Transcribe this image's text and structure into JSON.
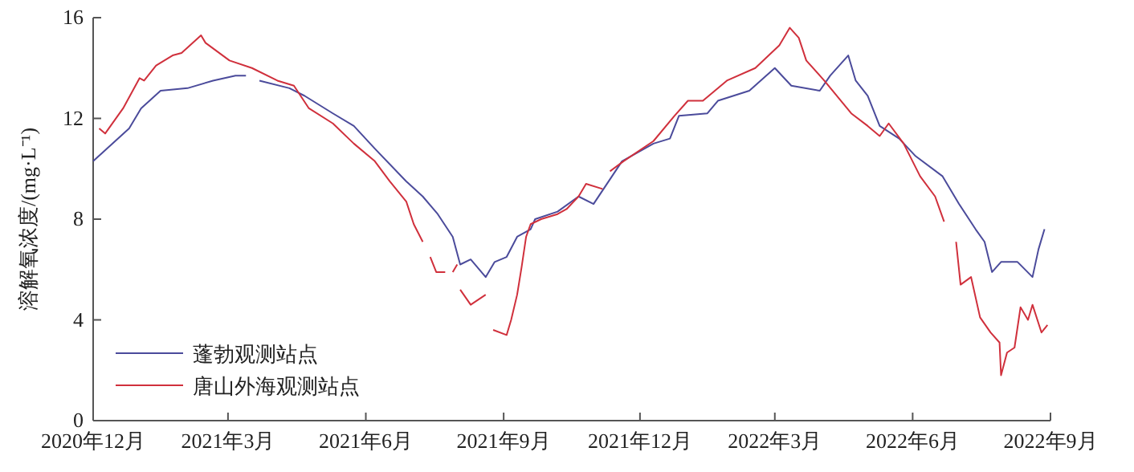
{
  "chart_data": {
    "type": "line",
    "ylabel": "溶解氧浓度/(mg·L⁻¹)",
    "xlim": [
      "2020-12-01",
      "2022-09-01"
    ],
    "xticks": [
      {
        "value": "2020-12-01",
        "label": "2020年12月"
      },
      {
        "value": "2021-03-01",
        "label": "2021年3月"
      },
      {
        "value": "2021-06-01",
        "label": "2021年6月"
      },
      {
        "value": "2021-09-01",
        "label": "2021年9月"
      },
      {
        "value": "2021-12-01",
        "label": "2021年12月"
      },
      {
        "value": "2022-03-01",
        "label": "2022年3月"
      },
      {
        "value": "2022-06-01",
        "label": "2022年6月"
      },
      {
        "value": "2022-09-01",
        "label": "2022年9月"
      }
    ],
    "ylim": [
      0,
      16
    ],
    "yticks": [
      0,
      4,
      8,
      12,
      16
    ],
    "legend": "bottom left",
    "grid": false,
    "series": [
      {
        "name": "蓬勃观测站点",
        "color": "#4b4b9b",
        "x": [
          "2020-12-01",
          "2020-12-25",
          "2021-01-02",
          "2021-01-15",
          "2021-02-02",
          "2021-02-19",
          "2021-03-06",
          "2021-03-13",
          "2021-03-17",
          "2021-03-22",
          "2021-04-11",
          "2021-04-21",
          "2021-05-10",
          "2021-05-24",
          "2021-06-07",
          "2021-06-28",
          "2021-07-09",
          "2021-07-19",
          "2021-07-29",
          "2021-08-03",
          "2021-08-10",
          "2021-08-20",
          "2021-08-26",
          "2021-09-03",
          "2021-09-10",
          "2021-09-19",
          "2021-09-22",
          "2021-10-07",
          "2021-10-21",
          "2021-10-31",
          "2021-11-19",
          "2021-12-10",
          "2021-12-21",
          "2021-12-27",
          "2022-01-15",
          "2022-01-22",
          "2022-02-12",
          "2022-03-01",
          "2022-03-12",
          "2022-03-31",
          "2022-04-07",
          "2022-04-19",
          "2022-04-24",
          "2022-05-02",
          "2022-05-10",
          "2022-05-23",
          "2022-06-03",
          "2022-06-21",
          "2022-07-02",
          "2022-07-13",
          "2022-07-19",
          "2022-07-24",
          "2022-07-30",
          "2022-08-10",
          "2022-08-20",
          "2022-08-24",
          "2022-08-28"
        ],
        "values": [
          10.3,
          11.6,
          12.4,
          13.1,
          13.2,
          13.5,
          13.7,
          13.7,
          null,
          13.5,
          13.2,
          12.9,
          12.2,
          11.7,
          10.8,
          9.5,
          8.9,
          8.2,
          7.3,
          6.2,
          6.4,
          5.7,
          6.3,
          6.5,
          7.3,
          7.6,
          8.0,
          8.3,
          8.9,
          8.6,
          10.3,
          11.0,
          11.2,
          12.1,
          12.2,
          12.7,
          13.1,
          14.0,
          13.3,
          13.1,
          13.7,
          14.5,
          13.5,
          12.9,
          11.7,
          11.2,
          10.5,
          9.7,
          8.6,
          7.6,
          7.1,
          5.9,
          6.3,
          6.3,
          5.7,
          6.8,
          7.6
        ]
      },
      {
        "name": "唐山外海观测站点",
        "color": "#d0303c",
        "x": [
          "2020-12-05",
          "2020-12-09",
          "2020-12-21",
          "2021-01-01",
          "2021-01-04",
          "2021-01-12",
          "2021-01-23",
          "2021-01-29",
          "2021-02-11",
          "2021-02-14",
          "2021-03-02",
          "2021-03-17",
          "2021-04-03",
          "2021-04-14",
          "2021-04-24",
          "2021-05-10",
          "2021-05-24",
          "2021-06-07",
          "2021-06-17",
          "2021-06-28",
          "2021-07-03",
          "2021-07-09",
          "2021-07-11",
          "2021-07-14",
          "2021-07-18",
          "2021-07-24",
          "2021-07-26",
          "2021-07-29",
          "2021-08-01",
          "2021-08-02",
          "2021-08-03",
          "2021-08-10",
          "2021-08-20",
          "2021-08-23",
          "2021-08-25",
          "2021-09-03",
          "2021-09-06",
          "2021-09-10",
          "2021-09-13",
          "2021-09-16",
          "2021-09-19",
          "2021-09-26",
          "2021-10-07",
          "2021-10-13",
          "2021-10-21",
          "2021-10-26",
          "2021-11-06",
          "2021-11-08",
          "2021-11-11",
          "2021-11-20",
          "2021-12-10",
          "2021-12-24",
          "2022-01-02",
          "2022-01-12",
          "2022-01-28",
          "2022-02-16",
          "2022-03-04",
          "2022-03-11",
          "2022-03-17",
          "2022-03-22",
          "2022-04-03",
          "2022-04-21",
          "2022-05-02",
          "2022-05-10",
          "2022-05-16",
          "2022-05-26",
          "2022-06-06",
          "2022-06-16",
          "2022-06-22",
          "2022-06-26",
          "2022-06-30",
          "2022-07-03",
          "2022-07-10",
          "2022-07-16",
          "2022-07-23",
          "2022-07-29",
          "2022-07-30",
          "2022-08-03",
          "2022-08-08",
          "2022-08-12",
          "2022-08-17",
          "2022-08-20",
          "2022-08-26",
          "2022-08-30"
        ],
        "values": [
          11.6,
          11.4,
          12.4,
          13.6,
          13.5,
          14.1,
          14.5,
          14.6,
          15.3,
          15.0,
          14.3,
          14.0,
          13.5,
          13.3,
          12.4,
          11.8,
          11.0,
          10.3,
          9.5,
          8.7,
          7.8,
          7.1,
          null,
          6.5,
          5.9,
          5.9,
          null,
          5.9,
          6.2,
          null,
          5.2,
          4.6,
          5.0,
          null,
          3.6,
          3.4,
          4.0,
          5.0,
          6.1,
          7.3,
          7.8,
          8.0,
          8.2,
          8.4,
          8.9,
          9.4,
          9.2,
          null,
          9.9,
          10.3,
          11.1,
          12.1,
          12.7,
          12.7,
          13.5,
          14.0,
          14.9,
          15.6,
          15.2,
          14.3,
          13.5,
          12.2,
          11.7,
          11.3,
          11.8,
          11.0,
          9.7,
          8.9,
          7.9,
          null,
          7.1,
          5.4,
          5.7,
          4.1,
          3.5,
          3.1,
          1.8,
          2.7,
          2.9,
          4.5,
          4.0,
          4.6,
          3.5,
          3.8
        ]
      }
    ]
  }
}
